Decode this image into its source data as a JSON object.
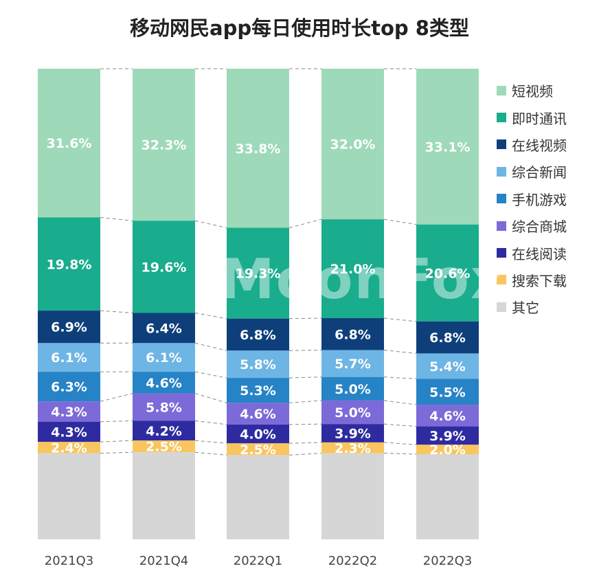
{
  "title": "移动网民app每日使用时长top 8类型",
  "watermark": "MoonFox",
  "chart_data": {
    "type": "bar",
    "stacked": true,
    "title": "移动网民app每日使用时长top 8类型",
    "categories": [
      "2021Q3",
      "2021Q4",
      "2022Q1",
      "2022Q2",
      "2022Q3"
    ],
    "ylim": [
      0,
      100
    ],
    "legend_position": "right",
    "series": [
      {
        "name": "短视频",
        "color": "#9ed9b9",
        "values": [
          31.6,
          32.3,
          33.8,
          32.0,
          33.1
        ]
      },
      {
        "name": "即时通讯",
        "color": "#19ac8d",
        "values": [
          19.8,
          19.6,
          19.3,
          21.0,
          20.6
        ]
      },
      {
        "name": "在线视频",
        "color": "#0e3f7b",
        "values": [
          6.9,
          6.4,
          6.8,
          6.8,
          6.8
        ]
      },
      {
        "name": "综合新闻",
        "color": "#6db5e4",
        "values": [
          6.1,
          6.1,
          5.8,
          5.7,
          5.4
        ]
      },
      {
        "name": "手机游戏",
        "color": "#2683c6",
        "values": [
          6.3,
          4.6,
          5.3,
          5.0,
          5.5
        ]
      },
      {
        "name": "综合商城",
        "color": "#7c6ad8",
        "values": [
          4.3,
          5.8,
          4.6,
          5.0,
          4.6
        ]
      },
      {
        "name": "在线阅读",
        "color": "#2e2ba1",
        "values": [
          4.3,
          4.2,
          4.0,
          3.9,
          3.9
        ]
      },
      {
        "name": "搜索下载",
        "color": "#f8c55f",
        "values": [
          2.4,
          2.5,
          2.5,
          2.3,
          2.0
        ]
      },
      {
        "name": "其它",
        "color": "#d6d6d6",
        "values": [
          18.3,
          18.5,
          17.9,
          18.3,
          18.1
        ],
        "labels_shown": false
      }
    ]
  }
}
